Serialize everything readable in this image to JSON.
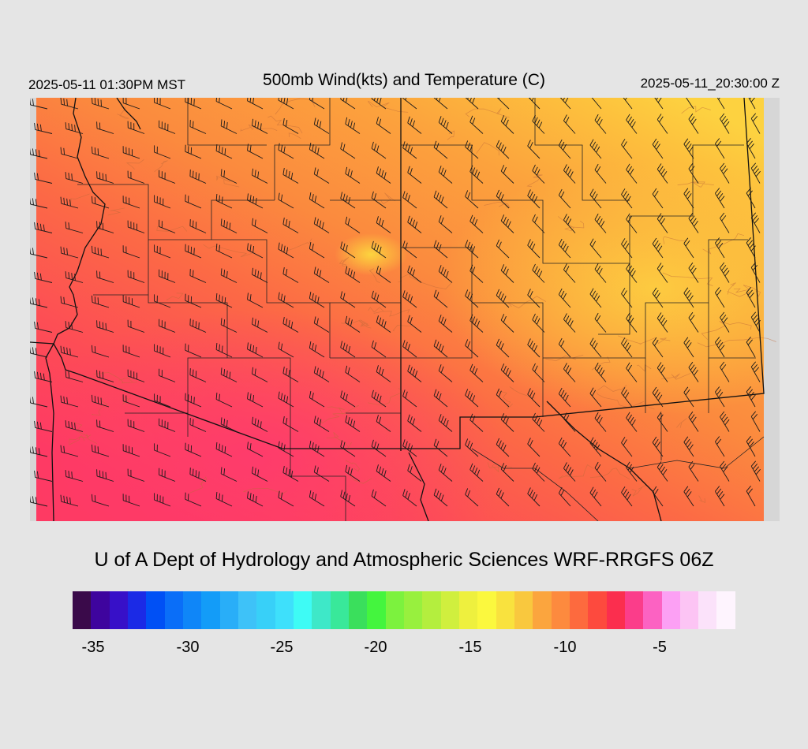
{
  "header": {
    "local_time": "2025-05-11 01:30PM MST",
    "title": "500mb Wind(kts) and Temperature (C)",
    "utc_time": "2025-05-11_20:30:00 Z"
  },
  "credit": "U of A Dept of Hydrology and Atmospheric Sciences WRF-RRGFS 06Z",
  "colorbar": {
    "colors": [
      "#3a0a4a",
      "#3e049e",
      "#3710c8",
      "#1b2ae6",
      "#0050f5",
      "#0a6ef8",
      "#0f86f8",
      "#139cf8",
      "#29aef8",
      "#3ec2f8",
      "#38d0f8",
      "#3ee0fb",
      "#3efbf5",
      "#3ee8c8",
      "#39e89a",
      "#3adf5c",
      "#44f53e",
      "#7cf23e",
      "#98f03e",
      "#b4ee3e",
      "#d0ef3e",
      "#eef03e",
      "#fbf83e",
      "#f9e23e",
      "#f9c83e",
      "#fba53e",
      "#fd8a3e",
      "#fd6a3e",
      "#fd4a3e",
      "#fb2e4e",
      "#fb3d8a",
      "#fc62c2",
      "#fca0f4",
      "#fcc4f4",
      "#fbe2fa",
      "#fef4fe"
    ],
    "tick_labels": [
      "-35",
      "-30",
      "-25",
      "-20",
      "-15",
      "-10",
      "-5"
    ]
  },
  "legend_swatch_colors": {
    "warmest_map_band": "#fe3e66",
    "coolest_map_band": "#fdd840",
    "missing_data": "#d6d6d6"
  }
}
